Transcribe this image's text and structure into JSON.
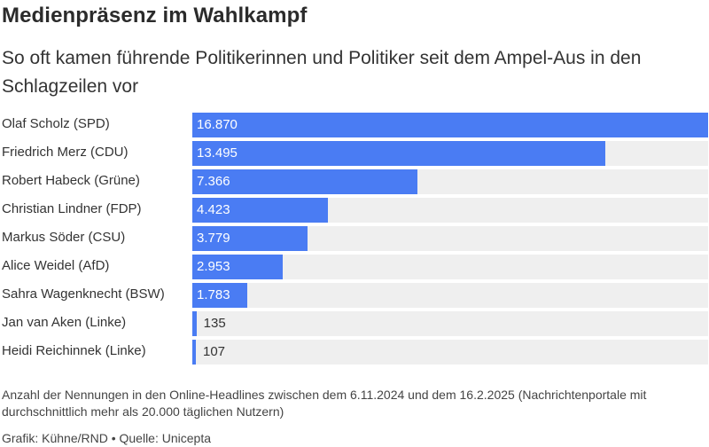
{
  "header": {
    "title": "Medienpräsenz im Wahlkampf",
    "subtitle": "So oft kamen führende Politikerinnen und Politiker seit dem Ampel-Aus in den Schlagzeilen vor"
  },
  "chart_data": {
    "type": "bar",
    "orientation": "horizontal",
    "categories": [
      "Olaf Scholz (SPD)",
      "Friedrich Merz (CDU)",
      "Robert Habeck (Grüne)",
      "Christian Lindner (FDP)",
      "Markus Söder (CSU)",
      "Alice Weidel (AfD)",
      "Sahra Wagenknecht (BSW)",
      "Jan van Aken (Linke)",
      "Heidi Reichinnek (Linke)"
    ],
    "values": [
      16870,
      13495,
      7366,
      4423,
      3779,
      2953,
      1783,
      135,
      107
    ],
    "value_labels": [
      "16.870",
      "13.495",
      "7.366",
      "4.423",
      "3.779",
      "2.953",
      "1.783",
      "135",
      "107"
    ],
    "xlim": [
      0,
      16870
    ],
    "grid": false,
    "bar_color": "#4a7cf3",
    "track_color": "#efefef"
  },
  "footer": {
    "note": "Anzahl der Nennungen in den Online-Headlines zwischen dem 6.11.2024 und dem 16.2.2025 (Nachrichtenportale mit durchschnittlich mehr als 20.000 täglichen Nutzern)",
    "source": "Grafik: Kühne/RND • Quelle: Unicepta"
  }
}
